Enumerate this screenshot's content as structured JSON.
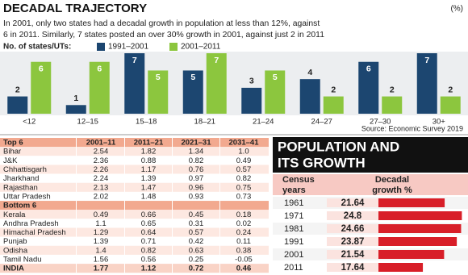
{
  "chart_data": [
    {
      "type": "bar",
      "title": "DECADAL TRAJECTORY",
      "unit": "(%)",
      "subtitle": [
        "In 2001, only two states had a decadal growth in population at less than 12%, against",
        "6 in 2011. Similarly, 7 states posted an over 30% growth in 2001, against just 2 in 2011"
      ],
      "legend_title": "No. of states/UTs:",
      "categories": [
        "<12",
        "12–15",
        "15–18",
        "18–21",
        "21–24",
        "24–27",
        "27–30",
        "30+"
      ],
      "series": [
        {
          "name": "1991–2001",
          "color": "#1c4670",
          "values": [
            2,
            1,
            7,
            5,
            3,
            4,
            6,
            7
          ]
        },
        {
          "name": "2001–2011",
          "color": "#8cc63e",
          "values": [
            6,
            6,
            5,
            7,
            5,
            2,
            2,
            2
          ]
        }
      ],
      "source": "Source: Economic Survey 2019"
    },
    {
      "type": "barh",
      "title": [
        "POPULATION AND",
        "ITS GROWTH"
      ],
      "category_header": [
        "Census",
        "years"
      ],
      "value_header": [
        "Decadal",
        "growth %"
      ],
      "categories": [
        "1961",
        "1971",
        "1981",
        "1991",
        "2001",
        "2011"
      ],
      "values": [
        21.64,
        24.8,
        24.66,
        23.87,
        21.54,
        17.64
      ],
      "color": "#d81e28"
    }
  ],
  "table": {
    "header": [
      "Top 6",
      "2001–11",
      "2011–21",
      "2021–31",
      "2031–41"
    ],
    "top_rows": [
      [
        "Bihar",
        "2.54",
        "1.82",
        "1.34",
        "1.0"
      ],
      [
        "J&K",
        "2.36",
        "0.88",
        "0.82",
        "0.49"
      ],
      [
        "Chhattisgarh",
        "2.26",
        "1.17",
        "0.76",
        "0.57"
      ],
      [
        "Jharkhand",
        "2.24",
        "1.39",
        "0.97",
        "0.82"
      ],
      [
        "Rajasthan",
        "2.13",
        "1.47",
        "0.96",
        "0.75"
      ],
      [
        "Uttar Pradesh",
        "2.02",
        "1.48",
        "0.93",
        "0.73"
      ]
    ],
    "bottom_header": "Bottom 6",
    "bottom_rows": [
      [
        "Kerala",
        "0.49",
        "0.66",
        "0.45",
        "0.18"
      ],
      [
        "Andhra Pradesh",
        "1.1",
        "0.65",
        "0.31",
        "0.02"
      ],
      [
        "Himachal Pradesh",
        "1.29",
        "0.64",
        "0.57",
        "0.24"
      ],
      [
        "Punjab",
        "1.39",
        "0.71",
        "0.42",
        "0.11"
      ],
      [
        "Odisha",
        "1.4",
        "0.82",
        "0.63",
        "0.38"
      ],
      [
        "Tamil Nadu",
        "1.56",
        "0.56",
        "0.25",
        "-0.05"
      ]
    ],
    "total_row": [
      "INDIA",
      "1.77",
      "1.12",
      "0.72",
      "0.46"
    ]
  }
}
